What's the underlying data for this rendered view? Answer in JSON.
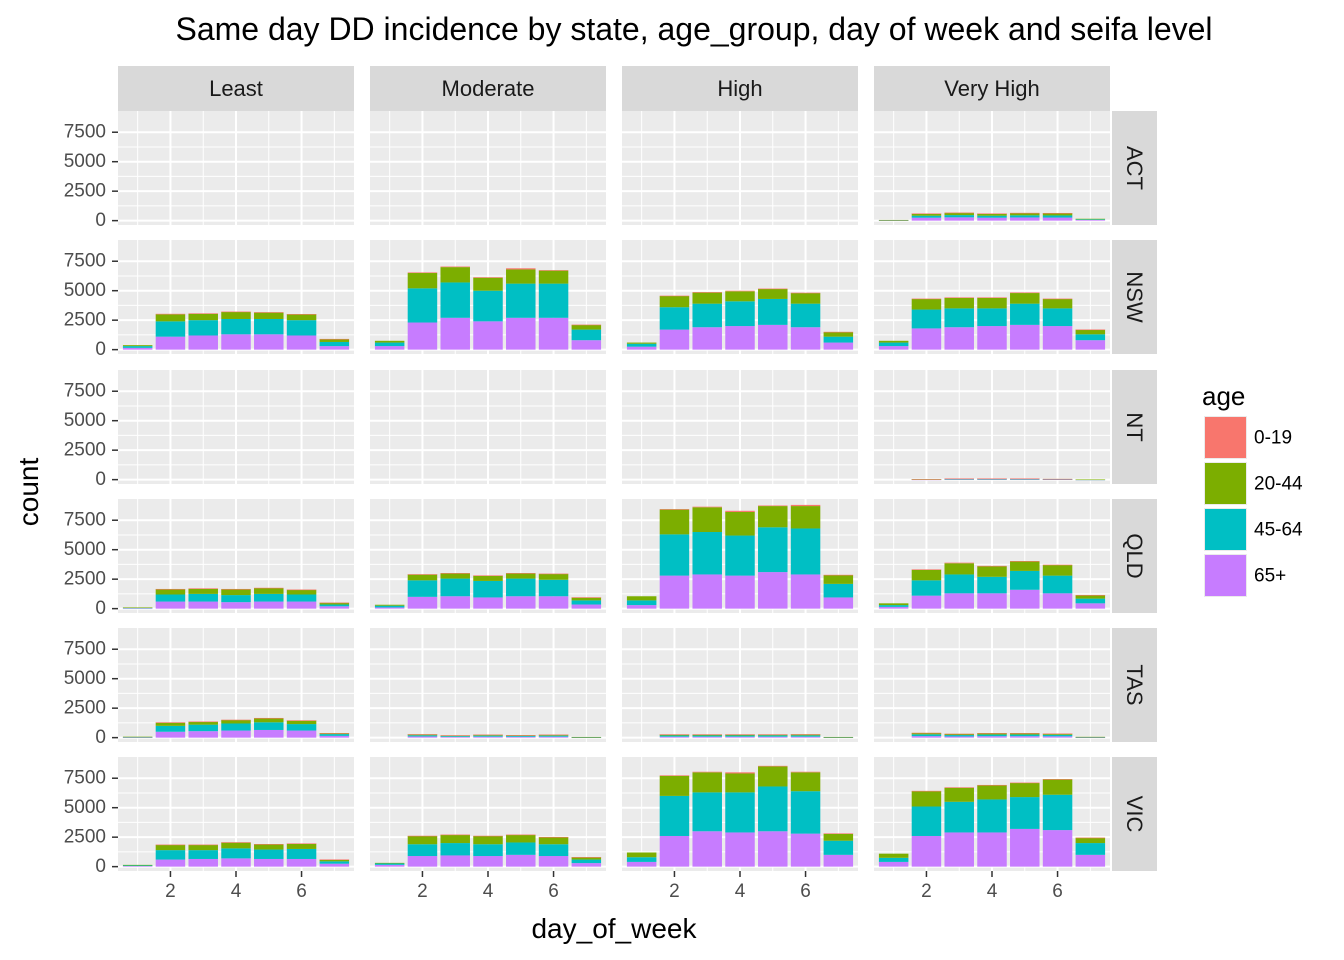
{
  "chart_data": {
    "type": "bar",
    "stacked": true,
    "title": "Same day DD incidence by state, age_group, day of week and seifa level",
    "xlabel": "day_of_week",
    "ylabel": "count",
    "x_ticks": [
      2,
      4,
      6
    ],
    "x_range": [
      0.4,
      7.6
    ],
    "y_ticks": [
      0,
      2500,
      5000,
      7500
    ],
    "y_tick_labels": [
      "0",
      "2500",
      "5000",
      "7500"
    ],
    "ylim": [
      -370,
      9300
    ],
    "grid": true,
    "legend": {
      "title": "age",
      "position": "right",
      "entries": [
        "0-19",
        "20-44",
        "45-64",
        "65+"
      ]
    },
    "series_colors": {
      "0-19": "#F8766D",
      "20-44": "#7CAE00",
      "45-64": "#00BFC4",
      "65+": "#C77CFF"
    },
    "panel_colors": {
      "panel_bg": "#EBEBEB",
      "grid": "#FFFFFF",
      "strip_bg": "#D9D9D9"
    },
    "columns": [
      "Least",
      "Moderate",
      "High",
      "Very High"
    ],
    "rows": [
      "ACT",
      "NSW",
      "NT",
      "QLD",
      "TAS",
      "VIC"
    ],
    "stack_order": [
      "65+",
      "45-64",
      "20-44",
      "0-19"
    ],
    "days": [
      1,
      2,
      3,
      4,
      5,
      6,
      7
    ],
    "panels": {
      "ACT": {
        "Least": null,
        "Moderate": null,
        "High": null,
        "Very High": {
          "65+": [
            30,
            250,
            280,
            250,
            270,
            260,
            70
          ],
          "45-64": [
            20,
            170,
            190,
            170,
            180,
            180,
            40
          ],
          "20-44": [
            10,
            180,
            200,
            180,
            200,
            200,
            50
          ],
          "0-19": [
            0,
            10,
            10,
            10,
            10,
            10,
            0
          ]
        }
      },
      "NSW": {
        "Least": {
          "65+": [
            150,
            1100,
            1200,
            1300,
            1300,
            1200,
            300
          ],
          "45-64": [
            150,
            1300,
            1300,
            1300,
            1300,
            1300,
            350
          ],
          "20-44": [
            80,
            600,
            550,
            600,
            550,
            500,
            250
          ],
          "0-19": [
            0,
            40,
            30,
            30,
            30,
            20,
            10
          ]
        },
        "Moderate": {
          "65+": [
            300,
            2300,
            2700,
            2400,
            2700,
            2700,
            800
          ],
          "45-64": [
            300,
            2900,
            3000,
            2600,
            2900,
            2900,
            900
          ],
          "20-44": [
            150,
            1300,
            1300,
            1100,
            1200,
            1100,
            400
          ],
          "0-19": [
            0,
            50,
            50,
            50,
            100,
            50,
            20
          ]
        },
        "High": {
          "65+": [
            250,
            1700,
            1900,
            2000,
            2100,
            1900,
            600
          ],
          "45-64": [
            250,
            1900,
            2000,
            2100,
            2200,
            2000,
            500
          ],
          "20-44": [
            100,
            950,
            950,
            850,
            850,
            900,
            400
          ],
          "0-19": [
            0,
            30,
            30,
            50,
            30,
            30,
            10
          ]
        },
        "Very High": {
          "65+": [
            300,
            1800,
            1900,
            2000,
            2100,
            2000,
            800
          ],
          "45-64": [
            300,
            1600,
            1600,
            1500,
            1800,
            1500,
            500
          ],
          "20-44": [
            150,
            900,
            900,
            900,
            900,
            800,
            400
          ],
          "0-19": [
            0,
            30,
            30,
            30,
            50,
            30,
            10
          ]
        }
      },
      "NT": {
        "Least": null,
        "Moderate": null,
        "High": null,
        "Very High": {
          "65+": [
            0,
            10,
            30,
            30,
            30,
            20,
            5
          ],
          "45-64": [
            0,
            10,
            30,
            30,
            30,
            20,
            5
          ],
          "20-44": [
            0,
            10,
            30,
            30,
            30,
            20,
            5
          ],
          "0-19": [
            0,
            5,
            10,
            10,
            10,
            5,
            0
          ]
        }
      },
      "QLD": {
        "Least": {
          "65+": [
            40,
            600,
            600,
            550,
            600,
            600,
            200
          ],
          "45-64": [
            40,
            600,
            650,
            600,
            650,
            600,
            150
          ],
          "20-44": [
            20,
            450,
            450,
            500,
            500,
            400,
            150
          ],
          "0-19": [
            0,
            20,
            20,
            20,
            20,
            20,
            10
          ]
        },
        "Moderate": {
          "65+": [
            100,
            1000,
            1050,
            950,
            1050,
            1050,
            350
          ],
          "45-64": [
            150,
            1400,
            1500,
            1400,
            1500,
            1400,
            350
          ],
          "20-44": [
            80,
            500,
            450,
            450,
            450,
            500,
            250
          ],
          "0-19": [
            0,
            20,
            20,
            20,
            20,
            20,
            10
          ]
        },
        "High": {
          "65+": [
            300,
            2800,
            2900,
            2800,
            3100,
            2900,
            950
          ],
          "45-64": [
            400,
            3500,
            3600,
            3400,
            3800,
            3900,
            1150
          ],
          "20-44": [
            350,
            2100,
            2100,
            2000,
            1800,
            1900,
            750
          ],
          "0-19": [
            0,
            50,
            50,
            100,
            50,
            100,
            20
          ]
        },
        "Very High": {
          "65+": [
            150,
            1100,
            1300,
            1300,
            1600,
            1300,
            450
          ],
          "45-64": [
            150,
            1300,
            1600,
            1400,
            1600,
            1500,
            400
          ],
          "20-44": [
            150,
            900,
            950,
            900,
            800,
            900,
            300
          ],
          "0-19": [
            0,
            30,
            50,
            30,
            40,
            30,
            10
          ]
        }
      },
      "TAS": {
        "Least": {
          "65+": [
            30,
            500,
            550,
            600,
            650,
            600,
            150
          ],
          "45-64": [
            30,
            500,
            550,
            600,
            650,
            550,
            150
          ],
          "20-44": [
            20,
            280,
            250,
            300,
            350,
            300,
            80
          ],
          "0-19": [
            0,
            20,
            20,
            20,
            20,
            20,
            5
          ]
        },
        "Moderate": {
          "65+": [
            0,
            100,
            60,
            80,
            70,
            80,
            20
          ],
          "45-64": [
            0,
            100,
            70,
            90,
            80,
            90,
            20
          ],
          "20-44": [
            0,
            80,
            60,
            80,
            60,
            80,
            20
          ],
          "0-19": [
            0,
            10,
            10,
            10,
            10,
            10,
            0
          ]
        },
        "High": {
          "65+": [
            0,
            80,
            80,
            80,
            80,
            80,
            20
          ],
          "45-64": [
            0,
            100,
            100,
            100,
            110,
            110,
            20
          ],
          "20-44": [
            0,
            90,
            90,
            90,
            80,
            90,
            20
          ],
          "0-19": [
            0,
            10,
            10,
            10,
            10,
            10,
            0
          ]
        },
        "Very High": {
          "65+": [
            0,
            130,
            100,
            120,
            120,
            110,
            20
          ],
          "45-64": [
            0,
            150,
            120,
            140,
            140,
            130,
            30
          ],
          "20-44": [
            0,
            120,
            100,
            120,
            120,
            100,
            20
          ],
          "0-19": [
            0,
            10,
            10,
            10,
            10,
            10,
            0
          ]
        }
      },
      "VIC": {
        "Least": {
          "65+": [
            50,
            600,
            650,
            700,
            650,
            650,
            250
          ],
          "45-64": [
            60,
            800,
            750,
            850,
            800,
            850,
            200
          ],
          "20-44": [
            40,
            450,
            450,
            500,
            450,
            450,
            150
          ],
          "0-19": [
            0,
            20,
            20,
            20,
            20,
            20,
            10
          ]
        },
        "Moderate": {
          "65+": [
            150,
            900,
            950,
            900,
            1000,
            900,
            300
          ],
          "45-64": [
            120,
            1000,
            1050,
            1000,
            1050,
            1000,
            300
          ],
          "20-44": [
            50,
            700,
            700,
            700,
            650,
            600,
            200
          ],
          "0-19": [
            0,
            20,
            20,
            20,
            20,
            20,
            10
          ]
        },
        "High": {
          "65+": [
            400,
            2600,
            3000,
            2900,
            3000,
            2800,
            1000
          ],
          "45-64": [
            400,
            3400,
            3300,
            3400,
            3800,
            3600,
            1200
          ],
          "20-44": [
            400,
            1700,
            1700,
            1600,
            1700,
            1600,
            600
          ],
          "0-19": [
            0,
            50,
            50,
            100,
            50,
            50,
            20
          ]
        },
        "Very High": {
          "65+": [
            400,
            2600,
            2900,
            2900,
            3200,
            3100,
            1000
          ],
          "45-64": [
            350,
            2500,
            2600,
            2800,
            2700,
            3000,
            1000
          ],
          "20-44": [
            350,
            1300,
            1200,
            1200,
            1200,
            1300,
            450
          ],
          "0-19": [
            0,
            30,
            30,
            30,
            30,
            30,
            10
          ]
        }
      }
    }
  }
}
